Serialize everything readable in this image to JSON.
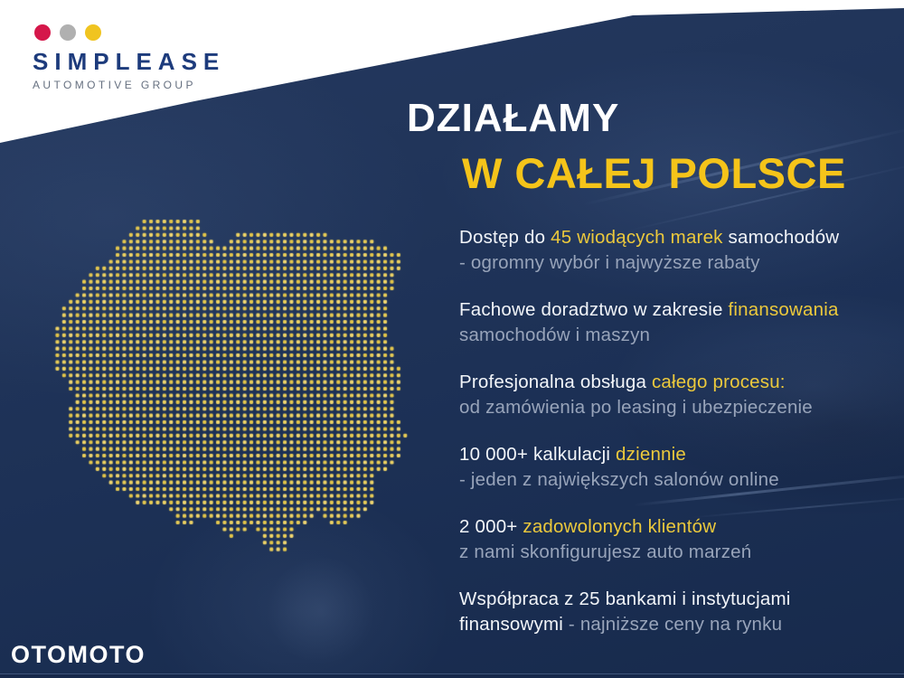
{
  "colors": {
    "navy": "#1d3156",
    "panel_white": "#ffffff",
    "title_yellow": "#f5c41a",
    "highlight_yellow": "#ecc93c",
    "text_primary": "#f2f5f9",
    "text_secondary": "#98a4ba",
    "map_dot": "#e9ce5b",
    "logo_dot_red": "#d5174a",
    "logo_dot_gray": "#b0b0b0",
    "logo_dot_yellow": "#f0c420",
    "logo_navy": "#1d3b7c",
    "logo_gray": "#667080"
  },
  "header_logo": {
    "name": "SIMPLEASE",
    "tagline": "AUTOMOTIVE GROUP",
    "dot_colors": [
      "#d5174a",
      "#b0b0b0",
      "#f0c420"
    ]
  },
  "title": {
    "line1": "DZIAŁAMY",
    "line2": "W CAŁEJ POLSCE"
  },
  "benefits": [
    {
      "line1": [
        {
          "t": "Dostęp do ",
          "c": "w"
        },
        {
          "t": "45 wiodących marek",
          "c": "y"
        },
        {
          "t": " samochodów",
          "c": "w"
        }
      ],
      "line2": [
        {
          "t": "- ogromny wybór i najwyższe rabaty",
          "c": "g"
        }
      ]
    },
    {
      "line1": [
        {
          "t": "Fachowe doradztwo w zakresie ",
          "c": "w"
        },
        {
          "t": "finansowania",
          "c": "y"
        }
      ],
      "line2": [
        {
          "t": "samochodów i maszyn",
          "c": "g"
        }
      ]
    },
    {
      "line1": [
        {
          "t": "Profesjonalna obsługa ",
          "c": "w"
        },
        {
          "t": "całego procesu:",
          "c": "y"
        }
      ],
      "line2": [
        {
          "t": "od zamówienia po leasing i ubezpieczenie",
          "c": "g"
        }
      ]
    },
    {
      "line1": [
        {
          "t": "10 000+ kalkulacji ",
          "c": "w"
        },
        {
          "t": "dziennie",
          "c": "y"
        }
      ],
      "line2": [
        {
          "t": "- jeden z największych salonów online",
          "c": "g"
        }
      ]
    },
    {
      "line1": [
        {
          "t": "2 000+ ",
          "c": "w"
        },
        {
          "t": "zadowolonych klientów",
          "c": "y"
        }
      ],
      "line2": [
        {
          "t": "z nami skonfigurujesz auto marzeń",
          "c": "g"
        }
      ]
    },
    {
      "line1": [
        {
          "t": "Współpraca z 25 bankami i instytucjami",
          "c": "w"
        }
      ],
      "line2": [
        {
          "t": "finansowymi",
          "c": "w"
        },
        {
          "t": " - najniższe ceny na rynku",
          "c": "g"
        }
      ]
    }
  ],
  "map": {
    "label": "poland-dot-map",
    "dot_color": "#e9ce5b"
  },
  "footer": {
    "brand": "OTOMOTO"
  }
}
